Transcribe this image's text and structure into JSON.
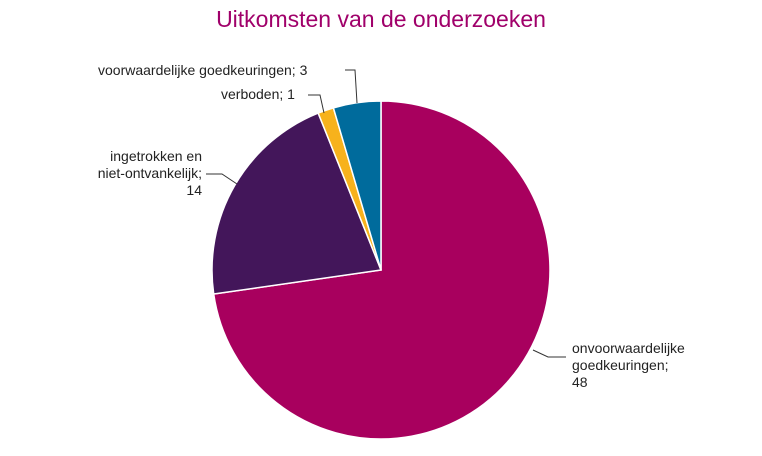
{
  "chart_data": {
    "type": "pie",
    "title": "Uitkomsten van de onderzoeken",
    "values": [
      48,
      14,
      1,
      3
    ],
    "value_labels": [
      "onvoorwaardelijke\ngoedkeuringen;\n48",
      "ingetrokken en\nniet-ontvankelijk;\n14",
      "verboden; 1",
      "voorwaardelijke goedkeuringen; 3"
    ],
    "colors": [
      "#a8005e",
      "#43165a",
      "#f7b21c",
      "#006b9c"
    ]
  }
}
